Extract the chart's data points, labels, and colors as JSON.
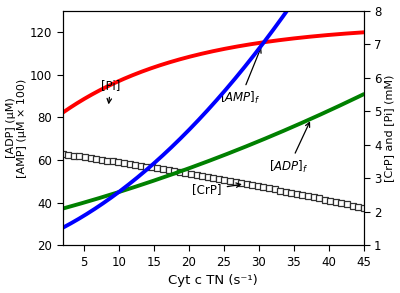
{
  "x_min": 2,
  "x_max": 45,
  "x_ticks": [
    5,
    10,
    15,
    20,
    25,
    30,
    35,
    40,
    45
  ],
  "xlabel": "Cyt c TN (s⁻¹)",
  "ylabel_left": "[ADP] (μM)\n[AMP] (μM × 100)",
  "ylabel_right": "[CrP] and [Pi] (mM)",
  "ylim_left": [
    20,
    130
  ],
  "ylim_right": [
    1,
    8
  ],
  "yticks_left": [
    20,
    40,
    60,
    80,
    100,
    120
  ],
  "yticks_right": [
    1,
    2,
    3,
    4,
    5,
    6,
    7,
    8
  ],
  "pi_color": "#ff0000",
  "amp_color": "#0000ff",
  "adp_color": "#008000",
  "crp_color": "#303030",
  "pi_A": 7.6,
  "pi_B": 2.95,
  "pi_k": 0.055,
  "amp_a": 1.55,
  "amp_b": 0.045,
  "amp_c": 25.0,
  "adp_a": 0.87,
  "adp_b": 0.008,
  "adp_c": 35.5,
  "crp_a": 3.78,
  "crp_b": -0.028,
  "crp_c": -0.0002
}
